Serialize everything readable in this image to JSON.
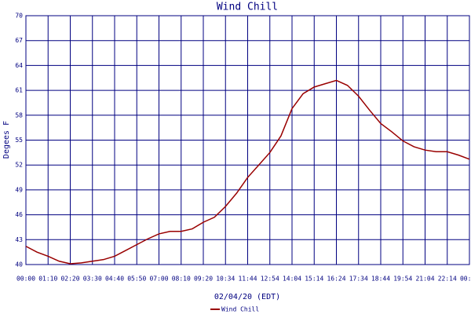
{
  "chart_data": {
    "type": "line",
    "title": "Wind Chill",
    "y_label": "Degees F",
    "x_label": "02/04/20 (EDT)",
    "categories": [
      "00:00",
      null,
      "01:10",
      null,
      "02:20",
      null,
      "03:30",
      null,
      "04:40",
      null,
      "05:50",
      null,
      "07:00",
      null,
      "08:10",
      null,
      "09:20",
      null,
      "10:34",
      null,
      "11:44",
      null,
      "12:54",
      null,
      "14:04",
      null,
      "15:14",
      null,
      "16:24",
      null,
      "17:34",
      null,
      "18:44",
      null,
      "19:54",
      null,
      "21:04",
      null,
      "22:14",
      null,
      "00:04"
    ],
    "series": [
      {
        "name": "Wind Chill",
        "color": "#990000",
        "values": [
          42.2,
          41.5,
          41.0,
          40.4,
          40.1,
          40.2,
          40.4,
          40.6,
          41.0,
          41.7,
          42.4,
          43.1,
          43.7,
          44.0,
          44.0,
          44.3,
          45.1,
          45.7,
          47.0,
          48.6,
          50.5,
          52.0,
          53.5,
          55.5,
          58.8,
          60.6,
          61.4,
          61.8,
          62.2,
          61.6,
          60.3,
          58.6,
          57.0,
          56.0,
          54.9,
          54.2,
          53.8,
          53.6,
          53.6,
          53.2,
          52.7
        ]
      }
    ],
    "ylim": [
      40,
      70
    ],
    "yticks": [
      40,
      43,
      46,
      49,
      52,
      55,
      58,
      61,
      64,
      67,
      70
    ],
    "grid": true,
    "grid_color": "#000080"
  }
}
